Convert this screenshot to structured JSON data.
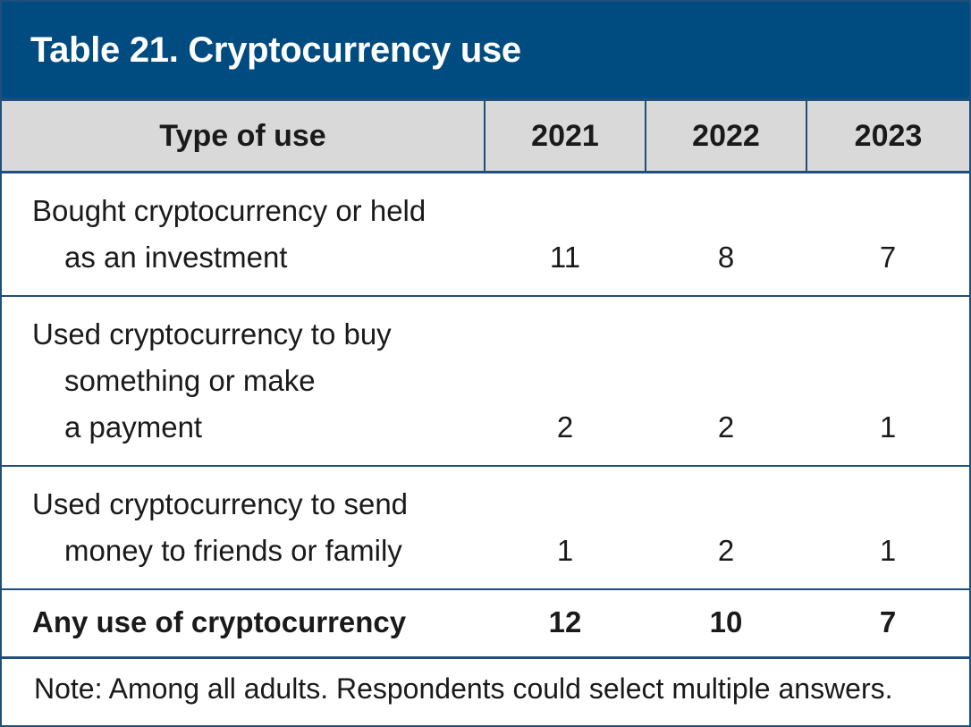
{
  "title": "Table 21. Cryptocurrency use",
  "chart_data": {
    "type": "table",
    "title": "Table 21. Cryptocurrency use",
    "columns": [
      "Type of use",
      "2021",
      "2022",
      "2023"
    ],
    "rows": [
      {
        "label_lines": [
          "Bought cryptocurrency or held",
          "as an investment"
        ],
        "values": [
          "11",
          "8",
          "7"
        ]
      },
      {
        "label_lines": [
          "Used cryptocurrency to buy",
          "something or make",
          "a payment"
        ],
        "values": [
          "2",
          "2",
          "1"
        ]
      },
      {
        "label_lines": [
          "Used cryptocurrency to send",
          "money to friends or family"
        ],
        "values": [
          "1",
          "2",
          "1"
        ]
      }
    ],
    "total": {
      "label": "Any use of cryptocurrency",
      "values": [
        "12",
        "10",
        "7"
      ]
    },
    "note": "Note: Among all adults. Respondents could select multiple answers."
  },
  "colors": {
    "title_bg": "#004c80",
    "header_bg": "#d9d9d9",
    "rule": "#1f4f7c"
  }
}
